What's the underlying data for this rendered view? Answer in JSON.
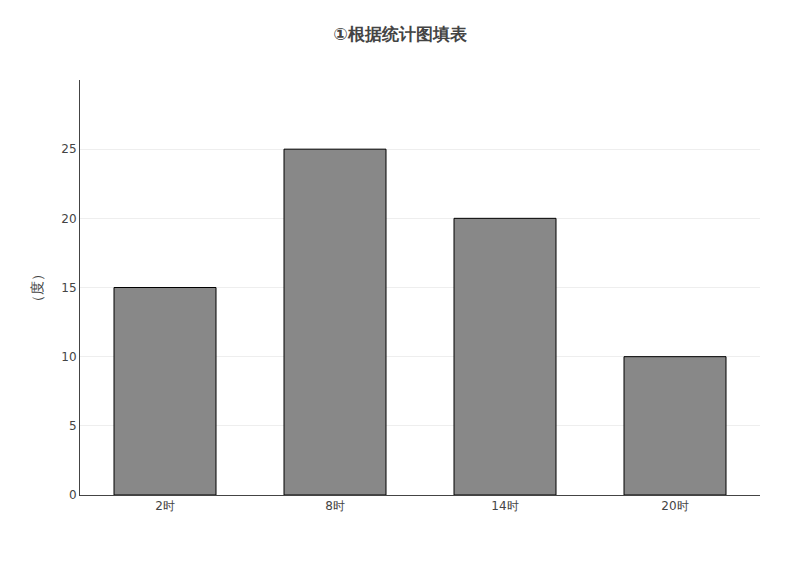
{
  "chart_data": {
    "type": "bar",
    "title": "①根据统计图填表",
    "ylabel": "（度）",
    "categories": [
      "2时",
      "8时",
      "14时",
      "20时"
    ],
    "values": [
      15,
      25,
      20,
      10
    ],
    "color": "#888888",
    "ylim": [
      0,
      30
    ],
    "yticks": [
      0,
      5,
      10,
      15,
      20,
      25
    ],
    "grid": true
  }
}
